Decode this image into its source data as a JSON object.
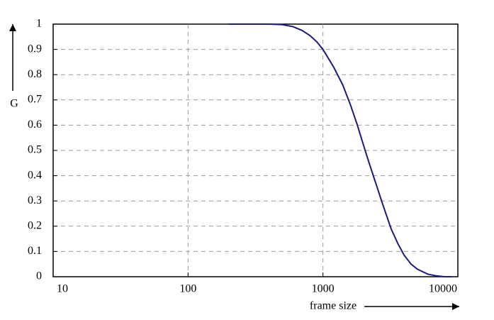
{
  "chart_data": {
    "type": "line",
    "x_label": "frame size",
    "y_label": "G",
    "x_log": true,
    "grid": true,
    "xlim": [
      10,
      10000
    ],
    "xticks": [
      10,
      100,
      1000,
      10000
    ],
    "ylim": [
      0,
      1
    ],
    "yticks": [
      0,
      0.1,
      0.2,
      0.3,
      0.4,
      0.5,
      0.6,
      0.7,
      0.8,
      0.9,
      1
    ],
    "series": [
      {
        "name": "G",
        "color": "#1a1a80",
        "x": [
          200,
          300,
          400,
          500,
          600,
          700,
          800,
          900,
          1000,
          1200,
          1400,
          1600,
          1800,
          2000,
          2200,
          2500,
          2800,
          3200,
          3600,
          4000,
          4500,
          5000,
          6000,
          7000,
          8000,
          9000
        ],
        "values": [
          1,
          1,
          1,
          0.998,
          0.99,
          0.975,
          0.955,
          0.93,
          0.9,
          0.83,
          0.76,
          0.68,
          0.6,
          0.52,
          0.45,
          0.36,
          0.28,
          0.19,
          0.13,
          0.085,
          0.05,
          0.03,
          0.01,
          0.003,
          0,
          0
        ]
      }
    ]
  }
}
